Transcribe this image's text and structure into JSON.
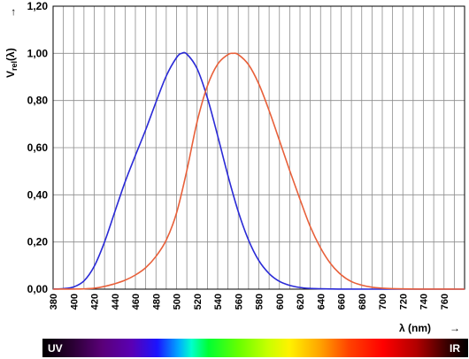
{
  "chart_data": {
    "type": "line",
    "title": "",
    "xlabel": "λ (nm)",
    "ylabel_main": "V",
    "ylabel_sub": "rel",
    "ylabel_tail": "(λ)",
    "axis_arrow": "→",
    "xlim": [
      380,
      780
    ],
    "ylim": [
      0,
      1.2
    ],
    "grid": true,
    "x_ticks": [
      "380",
      "400",
      "420",
      "440",
      "460",
      "480",
      "500",
      "520",
      "540",
      "560",
      "580",
      "600",
      "620",
      "640",
      "660",
      "680",
      "700",
      "720",
      "740",
      "760"
    ],
    "y_ticks": [
      "0,00",
      "0,20",
      "0,40",
      "0,60",
      "0,80",
      "1,00",
      "1,20"
    ],
    "series": [
      {
        "color": "#2a2ad6",
        "x": [
          380,
          390,
          400,
          410,
          420,
          430,
          440,
          450,
          460,
          470,
          480,
          490,
          500,
          505,
          510,
          520,
          530,
          540,
          550,
          560,
          570,
          580,
          590,
          600,
          610,
          620,
          630,
          640,
          650,
          660,
          700,
          780
        ],
        "values": [
          0.0006,
          0.0022,
          0.0093,
          0.035,
          0.097,
          0.2,
          0.328,
          0.455,
          0.567,
          0.676,
          0.793,
          0.904,
          0.982,
          1.0,
          0.997,
          0.935,
          0.811,
          0.65,
          0.481,
          0.329,
          0.208,
          0.121,
          0.066,
          0.033,
          0.016,
          0.007,
          0.003,
          0.0015,
          0.0007,
          0.0003,
          0.0,
          0.0
        ]
      },
      {
        "color": "#e8603a",
        "x": [
          380,
          390,
          400,
          410,
          420,
          430,
          440,
          450,
          460,
          470,
          480,
          490,
          500,
          510,
          520,
          530,
          540,
          550,
          555,
          560,
          570,
          580,
          590,
          600,
          610,
          620,
          630,
          640,
          650,
          660,
          670,
          680,
          690,
          700,
          720,
          740,
          760,
          780
        ],
        "values": [
          0.0,
          0.0001,
          0.0004,
          0.0012,
          0.004,
          0.0116,
          0.023,
          0.038,
          0.06,
          0.091,
          0.139,
          0.208,
          0.323,
          0.503,
          0.71,
          0.862,
          0.954,
          0.995,
          1.0,
          0.995,
          0.952,
          0.87,
          0.757,
          0.631,
          0.503,
          0.381,
          0.265,
          0.175,
          0.107,
          0.061,
          0.032,
          0.017,
          0.0082,
          0.0041,
          0.001,
          0.0003,
          0.0001,
          0.0
        ]
      }
    ]
  },
  "spectrum_bar": {
    "left_label": "UV",
    "right_label": "IR"
  }
}
